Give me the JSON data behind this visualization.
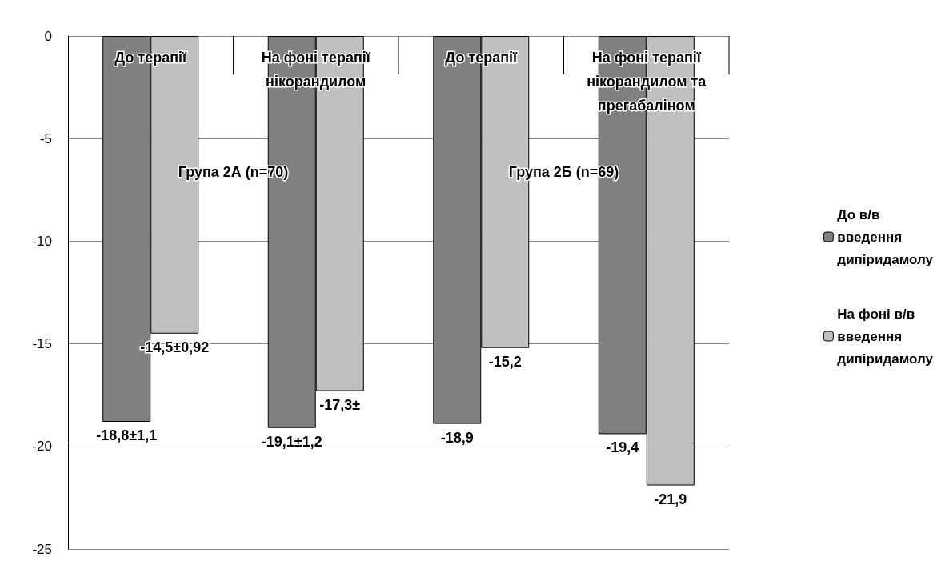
{
  "chart_data": {
    "type": "bar",
    "categories": [
      "До терапії",
      "На фоні терапії нікорандилом",
      "До терапії",
      "На фоні терапії нікорандилом та прегабаліном"
    ],
    "series": [
      {
        "name": "До в/в введення дипіридамолу",
        "color": "#808080",
        "values": [
          -18.8,
          -19.1,
          -18.9,
          -19.4
        ],
        "value_labels": [
          "-18,8±1,1",
          "-19,1±1,2",
          "-18,9",
          "-19,4"
        ]
      },
      {
        "name": "На фоні в/в введення дипіридамолу",
        "color": "#c0c0c0",
        "values": [
          -14.5,
          -17.3,
          -15.2,
          -21.9
        ],
        "value_labels": [
          "-14,5±0,92",
          "-17,3±",
          "-15,2",
          "-21,9"
        ]
      }
    ],
    "annotations": [
      "Група 2А (n=70)",
      "Група 2Б (n=69)"
    ],
    "ylim": [
      -25,
      0
    ],
    "yticks": [
      0,
      -5,
      -10,
      -15,
      -20,
      -25
    ],
    "grid": "y",
    "legend": "right"
  }
}
